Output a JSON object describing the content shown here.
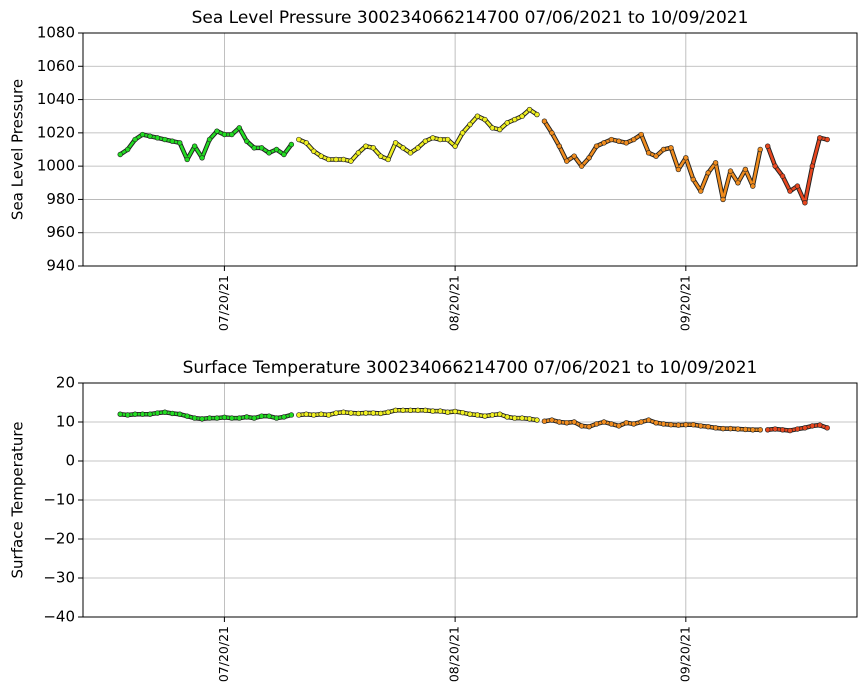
{
  "chart_data": [
    {
      "type": "scatter",
      "title": "Sea Level Pressure 300234066214700  07/06/2021 to 10/09/2021",
      "y_label": "Sea Level Pressure",
      "xlim": [
        "2021-07-01",
        "2021-10-13"
      ],
      "xticks": [
        {
          "value": "2021-07-20",
          "label": "07/20/21"
        },
        {
          "value": "2021-08-20",
          "label": "08/20/21"
        },
        {
          "value": "2021-09-20",
          "label": "09/20/21"
        }
      ],
      "ylim": [
        940,
        1080
      ],
      "yticks": [
        940,
        960,
        980,
        1000,
        1020,
        1040,
        1060,
        1080
      ],
      "grid": true,
      "series": [
        {
          "color": "#22dd22",
          "x": [
            "2021-07-06",
            "2021-07-07",
            "2021-07-08",
            "2021-07-09",
            "2021-07-10",
            "2021-07-11",
            "2021-07-12",
            "2021-07-13",
            "2021-07-14",
            "2021-07-15",
            "2021-07-16",
            "2021-07-17",
            "2021-07-18",
            "2021-07-19",
            "2021-07-20",
            "2021-07-21",
            "2021-07-22",
            "2021-07-23",
            "2021-07-24",
            "2021-07-25",
            "2021-07-26",
            "2021-07-27",
            "2021-07-28",
            "2021-07-29"
          ],
          "values": [
            1007,
            1010,
            1016,
            1019,
            1018,
            1017,
            1016,
            1015,
            1014,
            1004,
            1012,
            1005,
            1016,
            1021,
            1019,
            1019,
            1023,
            1015,
            1011,
            1011,
            1008,
            1010,
            1007,
            1013
          ]
        },
        {
          "color": "#f0f020",
          "x": [
            "2021-07-30",
            "2021-07-31",
            "2021-08-01",
            "2021-08-02",
            "2021-08-03",
            "2021-08-04",
            "2021-08-05",
            "2021-08-06",
            "2021-08-07",
            "2021-08-08",
            "2021-08-09",
            "2021-08-10",
            "2021-08-11",
            "2021-08-12",
            "2021-08-13",
            "2021-08-14",
            "2021-08-15",
            "2021-08-16",
            "2021-08-17",
            "2021-08-18",
            "2021-08-19",
            "2021-08-20",
            "2021-08-21",
            "2021-08-22",
            "2021-08-23",
            "2021-08-24",
            "2021-08-25",
            "2021-08-26",
            "2021-08-27",
            "2021-08-28",
            "2021-08-29",
            "2021-08-30",
            "2021-08-31"
          ],
          "values": [
            1016,
            1014,
            1009,
            1006,
            1004,
            1004,
            1004,
            1003,
            1008,
            1012,
            1011,
            1006,
            1004,
            1014,
            1011,
            1008,
            1011,
            1015,
            1017,
            1016,
            1016,
            1012,
            1020,
            1025,
            1030,
            1028,
            1023,
            1022,
            1026,
            1028,
            1030,
            1034,
            1031
          ]
        },
        {
          "color": "#f08c1e",
          "x": [
            "2021-09-01",
            "2021-09-02",
            "2021-09-03",
            "2021-09-04",
            "2021-09-05",
            "2021-09-06",
            "2021-09-07",
            "2021-09-08",
            "2021-09-09",
            "2021-09-10",
            "2021-09-11",
            "2021-09-12",
            "2021-09-13",
            "2021-09-14",
            "2021-09-15",
            "2021-09-16",
            "2021-09-17",
            "2021-09-18",
            "2021-09-19",
            "2021-09-20",
            "2021-09-21",
            "2021-09-22",
            "2021-09-23",
            "2021-09-24",
            "2021-09-25",
            "2021-09-26",
            "2021-09-27",
            "2021-09-28",
            "2021-09-29",
            "2021-09-30"
          ],
          "values": [
            1027,
            1020,
            1012,
            1003,
            1006,
            1000,
            1005,
            1012,
            1014,
            1016,
            1015,
            1014,
            1016,
            1019,
            1008,
            1006,
            1010,
            1011,
            998,
            1005,
            992,
            985,
            996,
            1002,
            980,
            997,
            990,
            998,
            988,
            1010
          ]
        },
        {
          "color": "#e8461e",
          "x": [
            "2021-10-01",
            "2021-10-02",
            "2021-10-03",
            "2021-10-04",
            "2021-10-05",
            "2021-10-06",
            "2021-10-07",
            "2021-10-08",
            "2021-10-09"
          ],
          "values": [
            1012,
            1000,
            994,
            985,
            988,
            978,
            1000,
            1017,
            1016
          ]
        }
      ]
    },
    {
      "type": "scatter",
      "title": "Surface Temperature 300234066214700  07/06/2021 to 10/09/2021",
      "y_label": "Surface Temperature",
      "xlim": [
        "2021-07-01",
        "2021-10-13"
      ],
      "xticks": [
        {
          "value": "2021-07-20",
          "label": "07/20/21"
        },
        {
          "value": "2021-08-20",
          "label": "08/20/21"
        },
        {
          "value": "2021-09-20",
          "label": "09/20/21"
        }
      ],
      "ylim": [
        -40,
        20
      ],
      "yticks": [
        {
          "value": -40,
          "label": "−40"
        },
        {
          "value": -30,
          "label": "−30"
        },
        {
          "value": -20,
          "label": "−20"
        },
        {
          "value": -10,
          "label": "−10"
        },
        0,
        10,
        20
      ],
      "grid": true,
      "series": [
        {
          "color": "#22dd22",
          "x": [
            "2021-07-06",
            "2021-07-07",
            "2021-07-08",
            "2021-07-09",
            "2021-07-10",
            "2021-07-11",
            "2021-07-12",
            "2021-07-13",
            "2021-07-14",
            "2021-07-15",
            "2021-07-16",
            "2021-07-17",
            "2021-07-18",
            "2021-07-19",
            "2021-07-20",
            "2021-07-21",
            "2021-07-22",
            "2021-07-23",
            "2021-07-24",
            "2021-07-25",
            "2021-07-26",
            "2021-07-27",
            "2021-07-28",
            "2021-07-29"
          ],
          "values": [
            12,
            11.8,
            12,
            12,
            12,
            12.3,
            12.5,
            12.2,
            12,
            11.5,
            11,
            10.8,
            11,
            11,
            11.2,
            11,
            11,
            11.3,
            11,
            11.5,
            11.5,
            11,
            11.3,
            11.8
          ]
        },
        {
          "color": "#f0f020",
          "x": [
            "2021-07-30",
            "2021-07-31",
            "2021-08-01",
            "2021-08-02",
            "2021-08-03",
            "2021-08-04",
            "2021-08-05",
            "2021-08-06",
            "2021-08-07",
            "2021-08-08",
            "2021-08-09",
            "2021-08-10",
            "2021-08-11",
            "2021-08-12",
            "2021-08-13",
            "2021-08-14",
            "2021-08-15",
            "2021-08-16",
            "2021-08-17",
            "2021-08-18",
            "2021-08-19",
            "2021-08-20",
            "2021-08-21",
            "2021-08-22",
            "2021-08-23",
            "2021-08-24",
            "2021-08-25",
            "2021-08-26",
            "2021-08-27",
            "2021-08-28",
            "2021-08-29",
            "2021-08-30",
            "2021-08-31"
          ],
          "values": [
            11.8,
            12,
            11.8,
            12,
            11.8,
            12.3,
            12.5,
            12.3,
            12.2,
            12.3,
            12.3,
            12.2,
            12.5,
            13,
            13,
            13,
            13,
            13,
            12.8,
            12.8,
            12.5,
            12.7,
            12.4,
            12,
            11.8,
            11.5,
            11.8,
            12,
            11.3,
            11,
            11,
            10.8,
            10.5
          ]
        },
        {
          "color": "#f08c1e",
          "x": [
            "2021-09-01",
            "2021-09-02",
            "2021-09-03",
            "2021-09-04",
            "2021-09-05",
            "2021-09-06",
            "2021-09-07",
            "2021-09-08",
            "2021-09-09",
            "2021-09-10",
            "2021-09-11",
            "2021-09-12",
            "2021-09-13",
            "2021-09-14",
            "2021-09-15",
            "2021-09-16",
            "2021-09-17",
            "2021-09-18",
            "2021-09-19",
            "2021-09-20",
            "2021-09-21",
            "2021-09-22",
            "2021-09-23",
            "2021-09-24",
            "2021-09-25",
            "2021-09-26",
            "2021-09-27",
            "2021-09-28",
            "2021-09-29",
            "2021-09-30"
          ],
          "values": [
            10.2,
            10.5,
            10,
            9.8,
            10,
            9,
            8.8,
            9.5,
            10,
            9.5,
            9,
            9.8,
            9.5,
            10,
            10.5,
            9.8,
            9.5,
            9.3,
            9.2,
            9.3,
            9.3,
            9,
            8.8,
            8.5,
            8.3,
            8.3,
            8.2,
            8.1,
            8,
            8
          ]
        },
        {
          "color": "#e8461e",
          "x": [
            "2021-10-01",
            "2021-10-02",
            "2021-10-03",
            "2021-10-04",
            "2021-10-05",
            "2021-10-06",
            "2021-10-07",
            "2021-10-08",
            "2021-10-09"
          ],
          "values": [
            8,
            8.2,
            8,
            7.8,
            8.2,
            8.5,
            9,
            9.2,
            8.5
          ]
        }
      ]
    }
  ]
}
